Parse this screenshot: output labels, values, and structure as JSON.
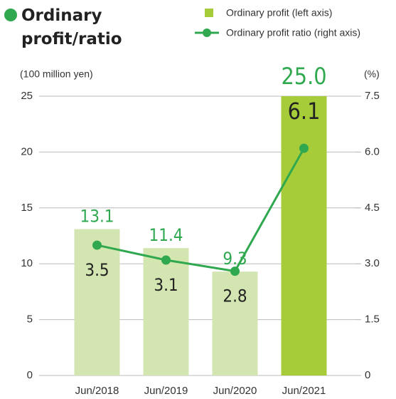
{
  "chart_data": {
    "type": "bar",
    "title": "Ordinary profit/ratio",
    "y_label": "(100 million yen)",
    "y2_label": "(%)",
    "categories": [
      "Jun/2018",
      "Jun/2019",
      "Jun/2020",
      "Jun/2021"
    ],
    "series": [
      {
        "name": "Ordinary profit (left axis)",
        "type": "bar",
        "color": "#a6cc3a",
        "colors": [
          "#d3e5b0",
          "#d3e5b0",
          "#d3e5b0",
          "#a6cc3a"
        ],
        "values": [
          13.1,
          11.4,
          9.3,
          25
        ],
        "value_labels": [
          "13.1",
          "11.4",
          "9.3",
          "25.0"
        ]
      },
      {
        "name": "Ordinary profit ratio (right axis)",
        "type": "line",
        "axis": "y2",
        "color": "#2fa84f",
        "values": [
          3.5,
          3.1,
          2.8,
          6.1
        ]
      }
    ],
    "ylim": [
      0,
      25
    ],
    "yticks": [
      0,
      5,
      10,
      15,
      20,
      25
    ],
    "y2lim": [
      0,
      7.5
    ],
    "y2ticks": [
      0,
      {
        "value": 1.5,
        "label": "1.5"
      },
      {
        "value": 3,
        "label": "3.0"
      },
      {
        "value": 4.5,
        "label": "4.5"
      },
      {
        "value": 6,
        "label": "6.0"
      },
      {
        "value": 7.5,
        "label": "7.5"
      }
    ],
    "grid": true
  }
}
